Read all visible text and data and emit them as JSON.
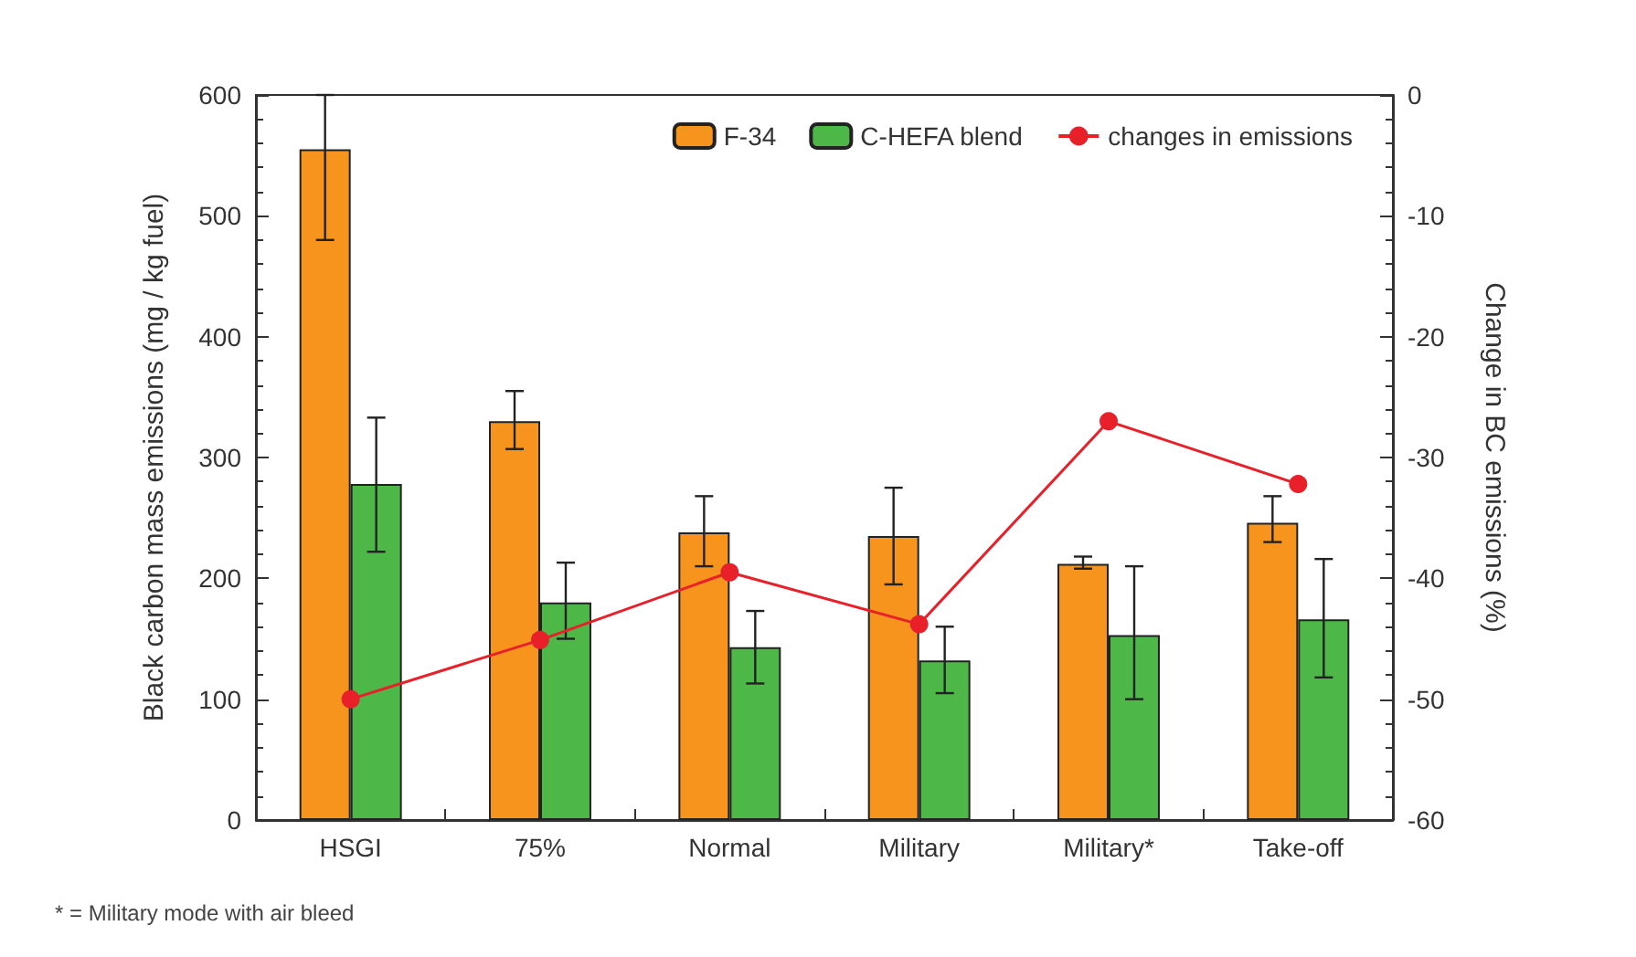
{
  "chart_data": {
    "type": "bar",
    "ylabel": "Black carbon mass emissions (mg / kg fuel)",
    "y2label": "Change in BC emissions (%)",
    "categories": [
      "HSGI",
      "75%",
      "Normal",
      "Military",
      "Military*",
      "Take-off"
    ],
    "series": [
      {
        "name": "F-34",
        "color": "#f7941d",
        "values": [
          555,
          330,
          238,
          235,
          212,
          246
        ],
        "errors": [
          [
            480,
            600
          ],
          [
            307,
            355
          ],
          [
            210,
            268
          ],
          [
            195,
            275
          ],
          [
            208,
            218
          ],
          [
            230,
            268
          ]
        ]
      },
      {
        "name": "C-HEFA blend",
        "color": "#4db848",
        "values": [
          278,
          180,
          143,
          132,
          153,
          166
        ],
        "errors": [
          [
            222,
            333
          ],
          [
            150,
            213
          ],
          [
            113,
            173
          ],
          [
            105,
            160
          ],
          [
            100,
            210
          ],
          [
            118,
            216
          ]
        ]
      },
      {
        "name": "changes in emissions",
        "type": "line",
        "axis": "y2",
        "color": "#e8202a",
        "marker": "circle",
        "values": [
          -50,
          -45.1,
          -39.5,
          -43.8,
          -27,
          -32.2
        ]
      }
    ],
    "ylim": [
      0,
      600
    ],
    "yticks": [
      0,
      100,
      200,
      300,
      400,
      500,
      600
    ],
    "y2lim": [
      -60,
      0
    ],
    "y2ticks": [
      -60,
      -50,
      -40,
      -30,
      -20,
      -10,
      0
    ],
    "legend": "top right",
    "grid": false,
    "annotations": [
      "* = Military mode with air bleed"
    ]
  }
}
